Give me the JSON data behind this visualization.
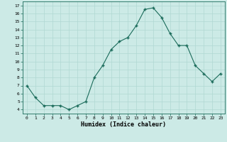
{
  "x": [
    0,
    1,
    2,
    3,
    4,
    5,
    6,
    7,
    8,
    9,
    10,
    11,
    12,
    13,
    14,
    15,
    16,
    17,
    18,
    19,
    20,
    21,
    22,
    23
  ],
  "y": [
    7.0,
    5.5,
    4.5,
    4.5,
    4.5,
    4.0,
    4.5,
    5.0,
    8.0,
    9.5,
    11.5,
    12.5,
    13.0,
    14.5,
    16.5,
    16.7,
    15.5,
    13.5,
    12.0,
    12.0,
    9.5,
    8.5,
    7.5,
    8.5
  ],
  "line_color": "#1a6b5a",
  "marker_color": "#1a6b5a",
  "bg_color": "#cceae6",
  "grid_color": "#b0d8d2",
  "xlabel": "Humidex (Indice chaleur)",
  "xlim": [
    -0.5,
    23.5
  ],
  "ylim": [
    3.5,
    17.5
  ],
  "yticks": [
    4,
    5,
    6,
    7,
    8,
    9,
    10,
    11,
    12,
    13,
    14,
    15,
    16,
    17
  ],
  "xticks": [
    0,
    1,
    2,
    3,
    4,
    5,
    6,
    7,
    8,
    9,
    10,
    11,
    12,
    13,
    14,
    15,
    16,
    17,
    18,
    19,
    20,
    21,
    22,
    23
  ],
  "xtick_labels": [
    "0",
    "1",
    "2",
    "3",
    "4",
    "5",
    "6",
    "7",
    "8",
    "9",
    "10",
    "11",
    "12",
    "13",
    "14",
    "15",
    "16",
    "17",
    "18",
    "19",
    "20",
    "21",
    "22",
    "23"
  ]
}
